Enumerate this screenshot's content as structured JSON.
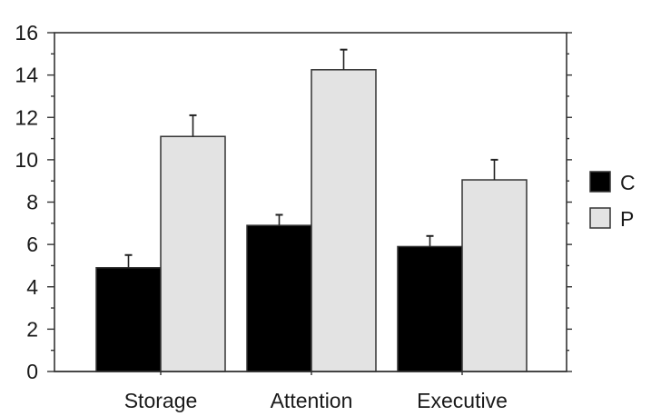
{
  "chart_data": {
    "type": "bar",
    "title": "",
    "xlabel": "",
    "ylabel": "",
    "categories": [
      "Storage",
      "Attention",
      "Executive"
    ],
    "series": [
      {
        "name": "C",
        "color": "#000000",
        "values": [
          4.9,
          6.9,
          5.9
        ],
        "error": [
          0.6,
          0.5,
          0.5
        ]
      },
      {
        "name": "P",
        "color": "#e3e3e3",
        "values": [
          11.1,
          14.25,
          9.05
        ],
        "error": [
          1.0,
          0.95,
          0.95
        ]
      }
    ],
    "ylim": [
      0,
      16
    ],
    "yticks": [
      0,
      2,
      4,
      6,
      8,
      10,
      12,
      14,
      16
    ],
    "yticks_labels": [
      "0",
      "2",
      "4",
      "6",
      "8",
      "10",
      "12",
      "14",
      "16"
    ],
    "grid": false,
    "legend_position": "right"
  },
  "legend": {
    "items": [
      {
        "label": "C",
        "color": "#000000"
      },
      {
        "label": "P",
        "color": "#e3e3e3"
      }
    ]
  }
}
